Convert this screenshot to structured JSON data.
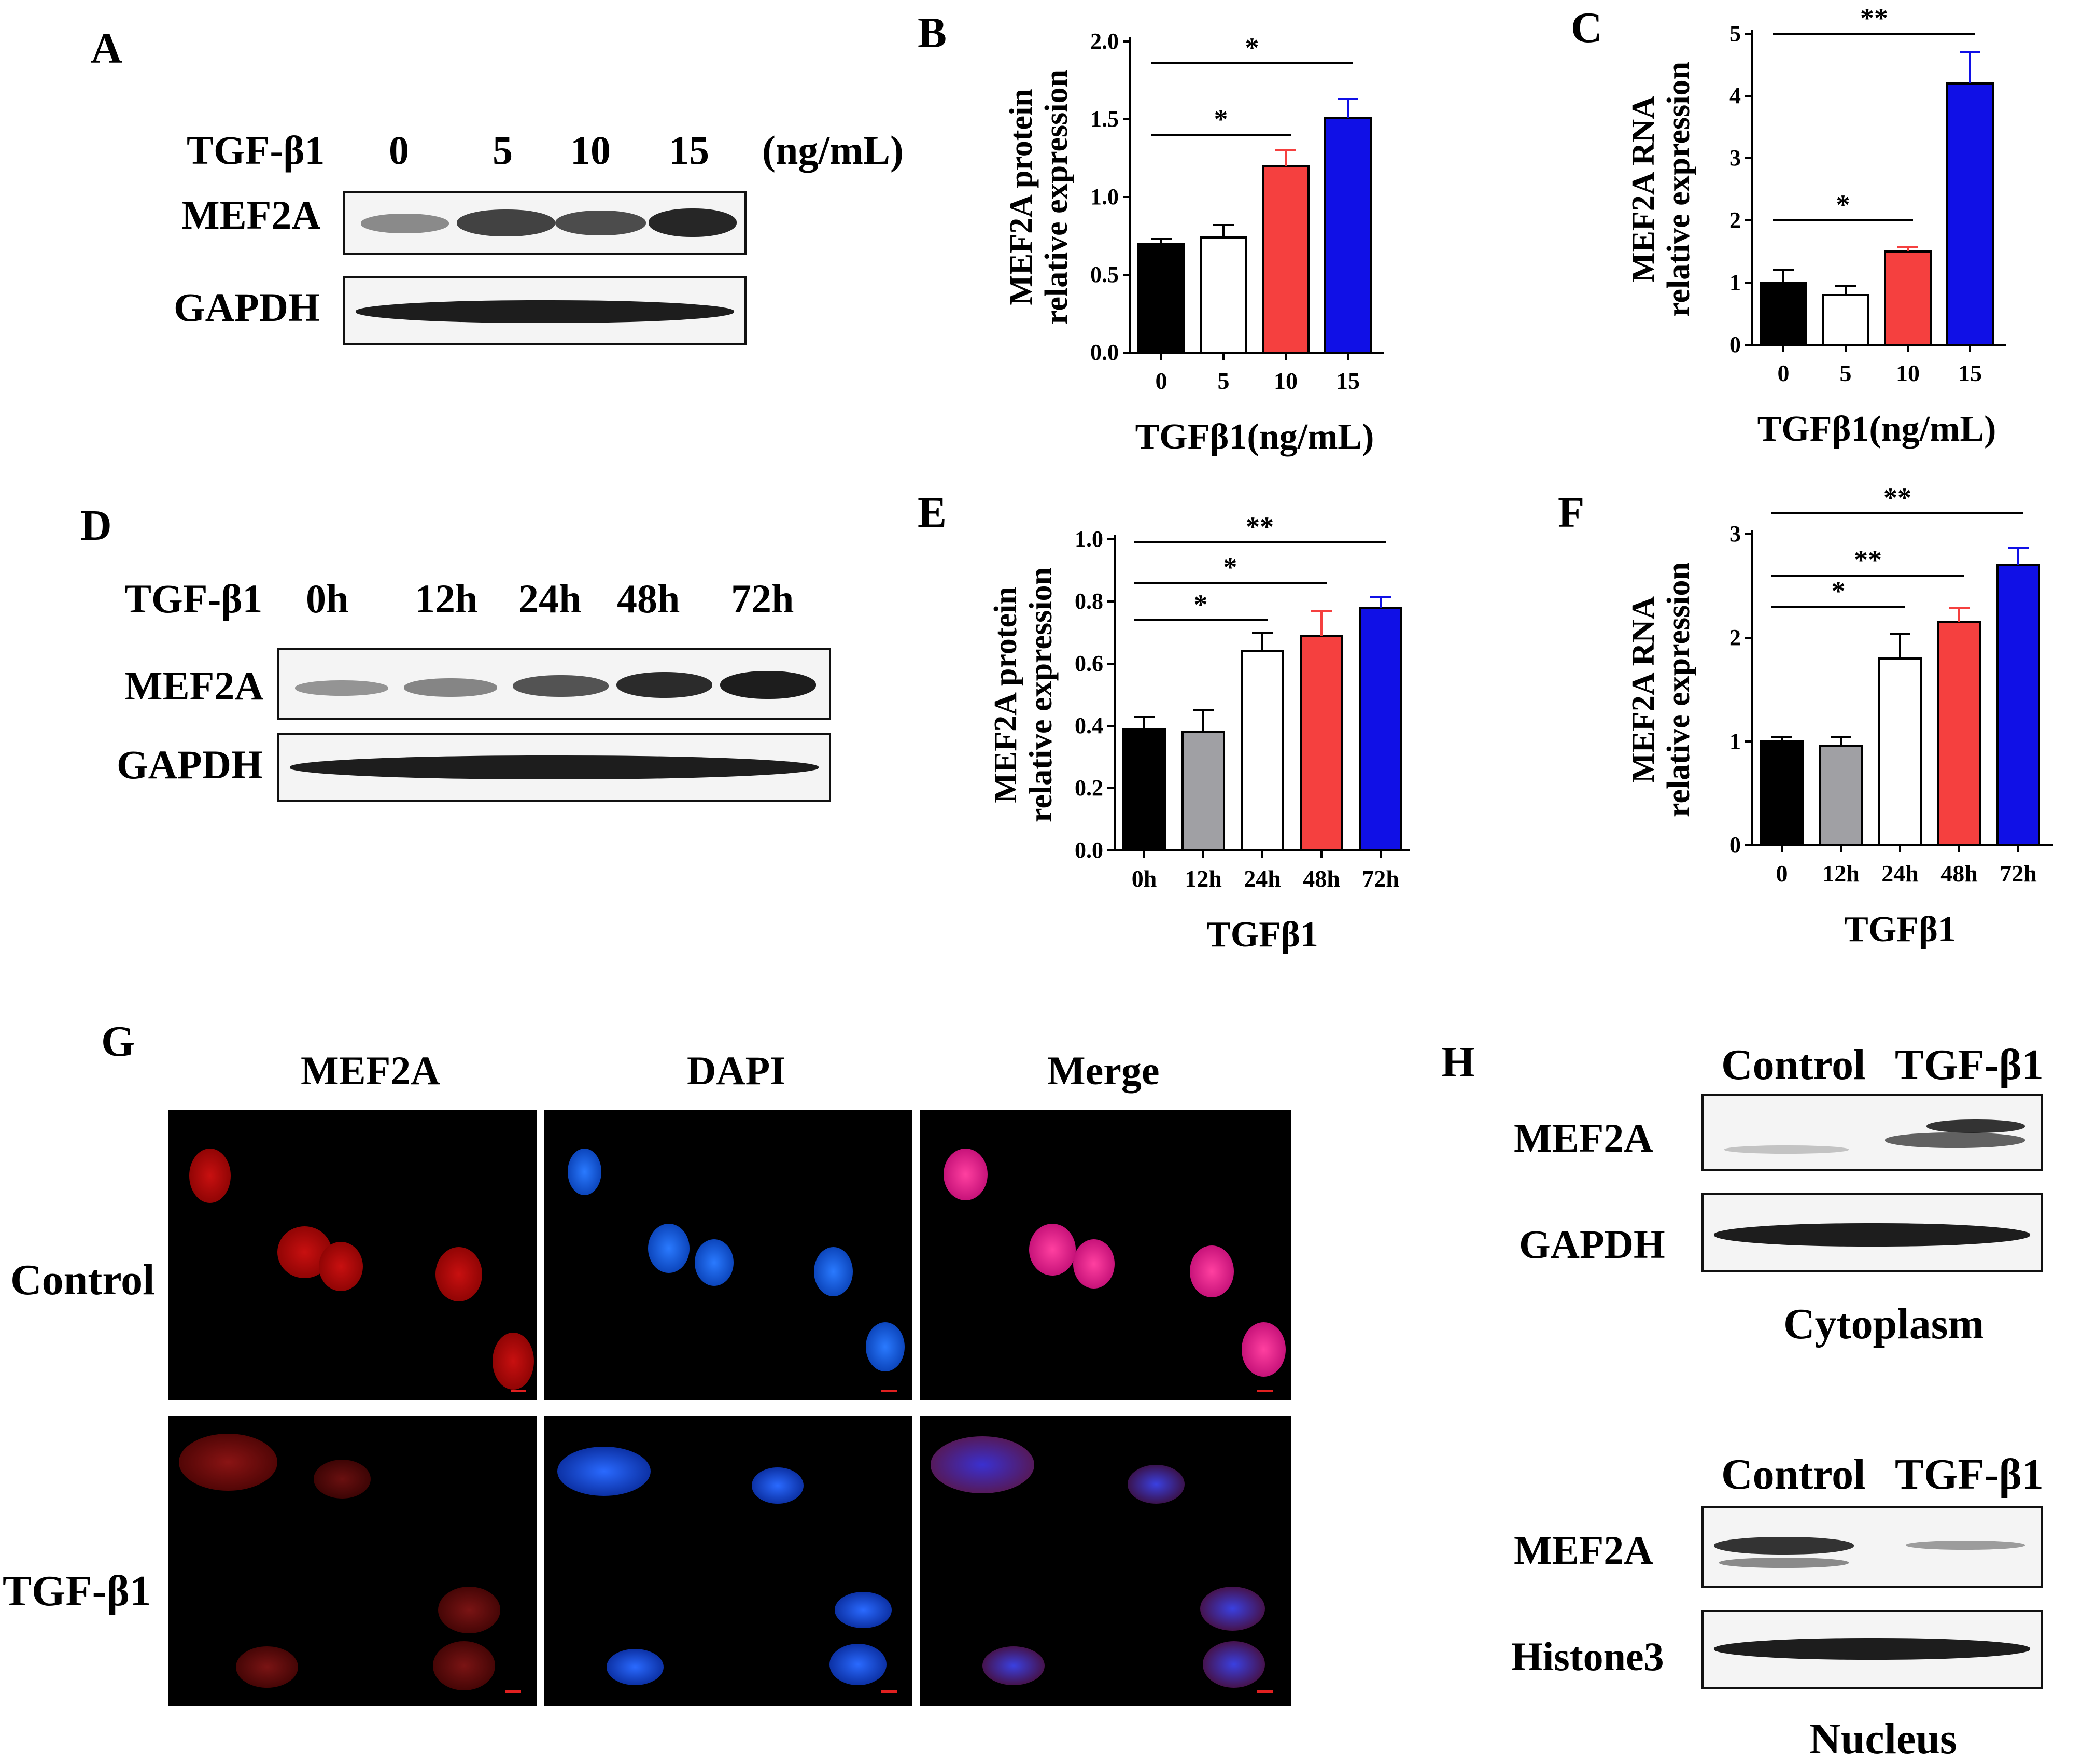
{
  "colors": {
    "black": "#000000",
    "white": "#ffffff",
    "gray": "#a0a0a4",
    "red": "#f5403f",
    "blue": "#1010e6"
  },
  "A": {
    "letter": "A",
    "header": "TGF-β1",
    "doses": [
      "0",
      "5",
      "10",
      "15"
    ],
    "unit": "(ng/mL)",
    "rows": [
      "MEF2A",
      "GAPDH"
    ],
    "bands": {
      "MEF2A": [
        0.55,
        0.85,
        0.8,
        0.95
      ],
      "GAPDH": [
        0.95,
        0.95,
        0.95,
        0.95
      ]
    }
  },
  "D": {
    "letter": "D",
    "header": "TGF-β1",
    "times": [
      "0h",
      "12h",
      "24h",
      "48h",
      "72h"
    ],
    "rows": [
      "MEF2A",
      "GAPDH"
    ],
    "bands": {
      "MEF2A": [
        0.45,
        0.5,
        0.7,
        0.85,
        0.95
      ],
      "GAPDH": [
        0.95,
        0.95,
        0.95,
        0.95,
        0.95
      ]
    }
  },
  "chart_data": [
    {
      "panel": "B",
      "type": "bar",
      "categories": [
        "0",
        "5",
        "10",
        "15"
      ],
      "values": [
        0.7,
        0.74,
        1.2,
        1.51
      ],
      "errors": [
        0.03,
        0.08,
        0.1,
        0.12
      ],
      "fills": [
        "#000000",
        "#ffffff",
        "#f5403f",
        "#1010e6"
      ],
      "yticks": [
        "0.0",
        "0.5",
        "1.0",
        "1.5",
        "2.0"
      ],
      "ylim": [
        0,
        2.0
      ],
      "ylabel": [
        "MEF2A  protein",
        "relative expression"
      ],
      "xlabel": "TGFβ1(ng/mL)",
      "sig": [
        {
          "from": 0,
          "to": 2,
          "y": 1.4,
          "label": "*"
        },
        {
          "from": 0,
          "to": 3,
          "y": 1.86,
          "label": "*"
        }
      ]
    },
    {
      "panel": "C",
      "type": "bar",
      "categories": [
        "0",
        "5",
        "10",
        "15"
      ],
      "values": [
        1.0,
        0.8,
        1.5,
        4.2
      ],
      "errors": [
        0.2,
        0.15,
        0.07,
        0.5
      ],
      "fills": [
        "#000000",
        "#ffffff",
        "#f5403f",
        "#1010e6"
      ],
      "yticks": [
        "0",
        "1",
        "2",
        "3",
        "4",
        "5"
      ],
      "ylim": [
        0,
        5
      ],
      "ylabel": [
        "MEF2A RNA",
        "relative expression"
      ],
      "xlabel": "TGFβ1(ng/mL)",
      "sig": [
        {
          "from": 0,
          "to": 2,
          "y": 2.0,
          "label": "*"
        },
        {
          "from": 0,
          "to": 3,
          "y": 5.0,
          "label": "**"
        }
      ]
    },
    {
      "panel": "E",
      "type": "bar",
      "categories": [
        "0h",
        "12h",
        "24h",
        "48h",
        "72h"
      ],
      "values": [
        0.39,
        0.38,
        0.64,
        0.69,
        0.78
      ],
      "errors": [
        0.04,
        0.07,
        0.06,
        0.08,
        0.035
      ],
      "fills": [
        "#000000",
        "#a0a0a4",
        "#ffffff",
        "#f5403f",
        "#1010e6"
      ],
      "yticks": [
        "0.0",
        "0.2",
        "0.4",
        "0.6",
        "0.8",
        "1.0"
      ],
      "ylim": [
        0,
        1.0
      ],
      "ylabel": [
        "MEF2A  protein",
        "relative expression"
      ],
      "xlabel": "TGFβ1",
      "sig": [
        {
          "from": 0,
          "to": 2,
          "y": 0.74,
          "label": "*"
        },
        {
          "from": 0,
          "to": 3,
          "y": 0.86,
          "label": "*"
        },
        {
          "from": 0,
          "to": 4,
          "y": 0.99,
          "label": "**"
        }
      ]
    },
    {
      "panel": "F",
      "type": "bar",
      "categories": [
        "0",
        "12h",
        "24h",
        "48h",
        "72h"
      ],
      "values": [
        1.0,
        0.96,
        1.8,
        2.15,
        2.7
      ],
      "errors": [
        0.04,
        0.08,
        0.24,
        0.14,
        0.17
      ],
      "fills": [
        "#000000",
        "#a0a0a4",
        "#ffffff",
        "#f5403f",
        "#1010e6"
      ],
      "yticks": [
        "0",
        "1",
        "2",
        "3"
      ],
      "ylim": [
        0,
        3
      ],
      "ylabel": [
        "MEF2A RNA",
        "relative expression"
      ],
      "xlabel": "TGFβ1",
      "sig": [
        {
          "from": 0,
          "to": 2,
          "y": 2.3,
          "label": "*"
        },
        {
          "from": 0,
          "to": 3,
          "y": 2.6,
          "label": "**"
        },
        {
          "from": 0,
          "to": 4,
          "y": 3.2,
          "label": "**"
        }
      ]
    }
  ],
  "G": {
    "letter": "G",
    "columns": [
      "MEF2A",
      "DAPI",
      "Merge"
    ],
    "rows": [
      "Control",
      "TGF-β1"
    ]
  },
  "H": {
    "letter": "H",
    "top": {
      "groups": [
        "Control",
        "TGF-β1"
      ],
      "rows": [
        "MEF2A",
        "GAPDH"
      ],
      "caption": "Cytoplasm"
    },
    "bottom": {
      "groups": [
        "Control",
        "TGF-β1"
      ],
      "rows": [
        "MEF2A",
        "Histone3"
      ],
      "caption": "Nucleus"
    }
  }
}
